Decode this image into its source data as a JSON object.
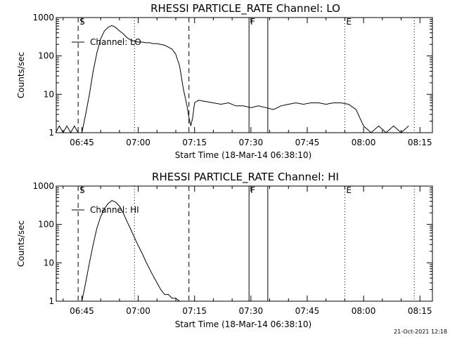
{
  "footer": {
    "timestamp": "21-Oct-2021 12:18"
  },
  "chart_data": [
    {
      "type": "line",
      "title": "RHESSI PARTICLE_RATE Channel: LO",
      "xlabel": "Start Time (18-Mar-14 06:38:10)",
      "ylabel": "Counts/sec",
      "yscale": "log",
      "ylim": [
        1,
        1000
      ],
      "xlim_minutes": [
        38.17,
        138.33
      ],
      "x_ticks": [
        "06:45",
        "07:00",
        "07:15",
        "07:30",
        "07:45",
        "08:00",
        "08:15"
      ],
      "y_ticks": [
        "1",
        "10",
        "100",
        "1000"
      ],
      "legend": {
        "label": "Channel: LO",
        "position": "top-left"
      },
      "markers": [
        {
          "label": "S",
          "x": "06:44:00",
          "style": "dashed"
        },
        {
          "label": "",
          "x": "06:59:00",
          "style": "dotted"
        },
        {
          "label": "",
          "x": "07:13:30",
          "style": "dashed"
        },
        {
          "label": "F",
          "x": "07:29:30",
          "style": "solid"
        },
        {
          "label": "",
          "x": "07:34:30",
          "style": "solid"
        },
        {
          "label": "E",
          "x": "07:55:00",
          "style": "dotted"
        },
        {
          "label": "",
          "x": "08:13:30",
          "style": "dotted"
        }
      ],
      "series": [
        {
          "name": "Channel: LO",
          "x": [
            "06:38",
            "06:39",
            "06:40",
            "06:41",
            "06:42",
            "06:43",
            "06:44",
            "06:45",
            "06:46",
            "06:47",
            "06:48",
            "06:49",
            "06:50",
            "06:51",
            "06:52",
            "06:53",
            "06:54",
            "06:55",
            "06:56",
            "06:57",
            "06:58",
            "06:59",
            "07:00",
            "07:01",
            "07:02",
            "07:03",
            "07:04",
            "07:05",
            "07:06",
            "07:07",
            "07:08",
            "07:09",
            "07:10",
            "07:11",
            "07:12",
            "07:13",
            "07:13:30",
            "07:14",
            "07:14:30",
            "07:15",
            "07:16",
            "07:18",
            "07:20",
            "07:22",
            "07:24",
            "07:26",
            "07:28",
            "07:30",
            "07:32",
            "07:34",
            "07:36",
            "07:38",
            "07:40",
            "07:42",
            "07:44",
            "07:46",
            "07:48",
            "07:50",
            "07:52",
            "07:54",
            "07:56",
            "07:58",
            "08:00",
            "08:02",
            "08:04",
            "08:06",
            "08:08",
            "08:10",
            "08:12"
          ],
          "y": [
            1,
            1.5,
            1,
            1.5,
            1,
            1.5,
            1,
            1,
            3,
            10,
            40,
            120,
            280,
            450,
            560,
            620,
            550,
            450,
            380,
            300,
            260,
            240,
            230,
            230,
            220,
            220,
            210,
            210,
            200,
            190,
            170,
            150,
            110,
            55,
            14,
            5,
            2.5,
            1.5,
            2.5,
            6,
            7,
            6.5,
            6,
            5.5,
            6,
            5,
            5,
            4.5,
            5,
            4.5,
            4,
            5,
            5.5,
            6,
            5.5,
            6,
            6,
            5.5,
            6,
            6,
            5.5,
            4,
            1.5,
            1,
            1.5,
            1,
            1.5,
            1,
            1.5
          ]
        }
      ]
    },
    {
      "type": "line",
      "title": "RHESSI PARTICLE_RATE Channel: HI",
      "xlabel": "Start Time (18-Mar-14 06:38:10)",
      "ylabel": "Counts/sec",
      "yscale": "log",
      "ylim": [
        1,
        1000
      ],
      "xlim_minutes": [
        38.17,
        138.33
      ],
      "x_ticks": [
        "06:45",
        "07:00",
        "07:15",
        "07:30",
        "07:45",
        "08:00",
        "08:15"
      ],
      "y_ticks": [
        "1",
        "10",
        "100",
        "1000"
      ],
      "legend": {
        "label": "Channel: HI",
        "position": "top-left"
      },
      "markers": [
        {
          "label": "S",
          "x": "06:44:00",
          "style": "dashed"
        },
        {
          "label": "",
          "x": "06:59:00",
          "style": "dotted"
        },
        {
          "label": "",
          "x": "07:13:30",
          "style": "dashed"
        },
        {
          "label": "F",
          "x": "07:29:30",
          "style": "solid"
        },
        {
          "label": "",
          "x": "07:34:30",
          "style": "solid"
        },
        {
          "label": "E",
          "x": "07:55:00",
          "style": "dotted"
        },
        {
          "label": "",
          "x": "08:13:30",
          "style": "dotted"
        }
      ],
      "series": [
        {
          "name": "Channel: HI",
          "x": [
            "06:45",
            "06:46",
            "06:47",
            "06:48",
            "06:49",
            "06:50",
            "06:51",
            "06:52",
            "06:53",
            "06:54",
            "06:55",
            "06:56",
            "06:57",
            "06:58",
            "06:59",
            "07:00",
            "07:01",
            "07:02",
            "07:03",
            "07:04",
            "07:05",
            "07:06",
            "07:07",
            "07:08",
            "07:09",
            "07:10",
            "07:11"
          ],
          "y": [
            1,
            3,
            10,
            30,
            80,
            160,
            260,
            350,
            420,
            380,
            300,
            200,
            120,
            75,
            45,
            28,
            18,
            11,
            7,
            4.5,
            3,
            2,
            1.5,
            1.5,
            1.2,
            1.2,
            1
          ]
        }
      ]
    }
  ]
}
